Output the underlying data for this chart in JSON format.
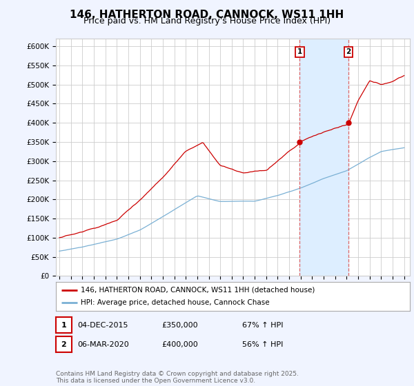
{
  "title": "146, HATHERTON ROAD, CANNOCK, WS11 1HH",
  "subtitle": "Price paid vs. HM Land Registry's House Price Index (HPI)",
  "ylabel_ticks": [
    "£0",
    "£50K",
    "£100K",
    "£150K",
    "£200K",
    "£250K",
    "£300K",
    "£350K",
    "£400K",
    "£450K",
    "£500K",
    "£550K",
    "£600K"
  ],
  "ytick_values": [
    0,
    50000,
    100000,
    150000,
    200000,
    250000,
    300000,
    350000,
    400000,
    450000,
    500000,
    550000,
    600000
  ],
  "xlim_start": 1994.7,
  "xlim_end": 2025.5,
  "ylim_min": 0,
  "ylim_max": 620000,
  "line1_color": "#cc0000",
  "line2_color": "#7ab0d4",
  "line1_label": "146, HATHERTON ROAD, CANNOCK, WS11 1HH (detached house)",
  "line2_label": "HPI: Average price, detached house, Cannock Chase",
  "sale1_date": 2015.92,
  "sale1_price": 350000,
  "sale2_date": 2020.17,
  "sale2_price": 400000,
  "shade_color": "#ddeeff",
  "vline_color": "#dd6666",
  "table_row1": [
    "1",
    "04-DEC-2015",
    "£350,000",
    "67% ↑ HPI"
  ],
  "table_row2": [
    "2",
    "06-MAR-2020",
    "£400,000",
    "56% ↑ HPI"
  ],
  "footer": "Contains HM Land Registry data © Crown copyright and database right 2025.\nThis data is licensed under the Open Government Licence v3.0.",
  "bg_color": "#f0f4ff",
  "plot_bg_color": "#ffffff",
  "grid_color": "#cccccc",
  "title_fontsize": 11,
  "subtitle_fontsize": 9,
  "tick_fontsize": 7.5
}
